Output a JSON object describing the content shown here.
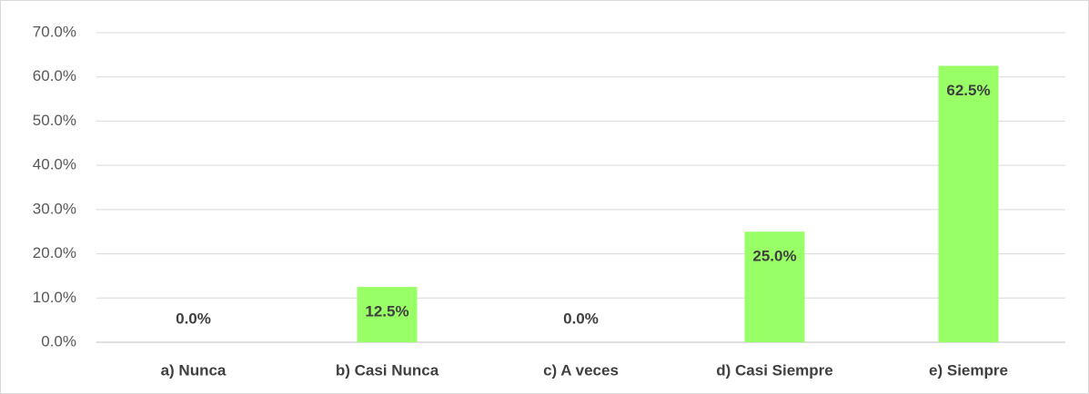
{
  "chart_data": {
    "type": "bar",
    "categories": [
      "a) Nunca",
      "b) Casi Nunca",
      "c) A veces",
      "d) Casi Siempre",
      "e) Siempre"
    ],
    "values": [
      0,
      12.5,
      0,
      25,
      62.5
    ],
    "value_labels": [
      "0.0%",
      "12.5%",
      "0.0%",
      "25.0%",
      "62.5%"
    ],
    "color": "#99ff66",
    "ylim": [
      0,
      70
    ],
    "yticks": [
      {
        "value": 0,
        "label": "0.0%"
      },
      {
        "value": 10,
        "label": "10.0%"
      },
      {
        "value": 20,
        "label": "20.0%"
      },
      {
        "value": 30,
        "label": "30.0%"
      },
      {
        "value": 40,
        "label": "40.0%"
      },
      {
        "value": 50,
        "label": "50.0%"
      },
      {
        "value": 60,
        "label": "60.0%"
      },
      {
        "value": 70,
        "label": "70.0%"
      }
    ],
    "grid": true
  }
}
